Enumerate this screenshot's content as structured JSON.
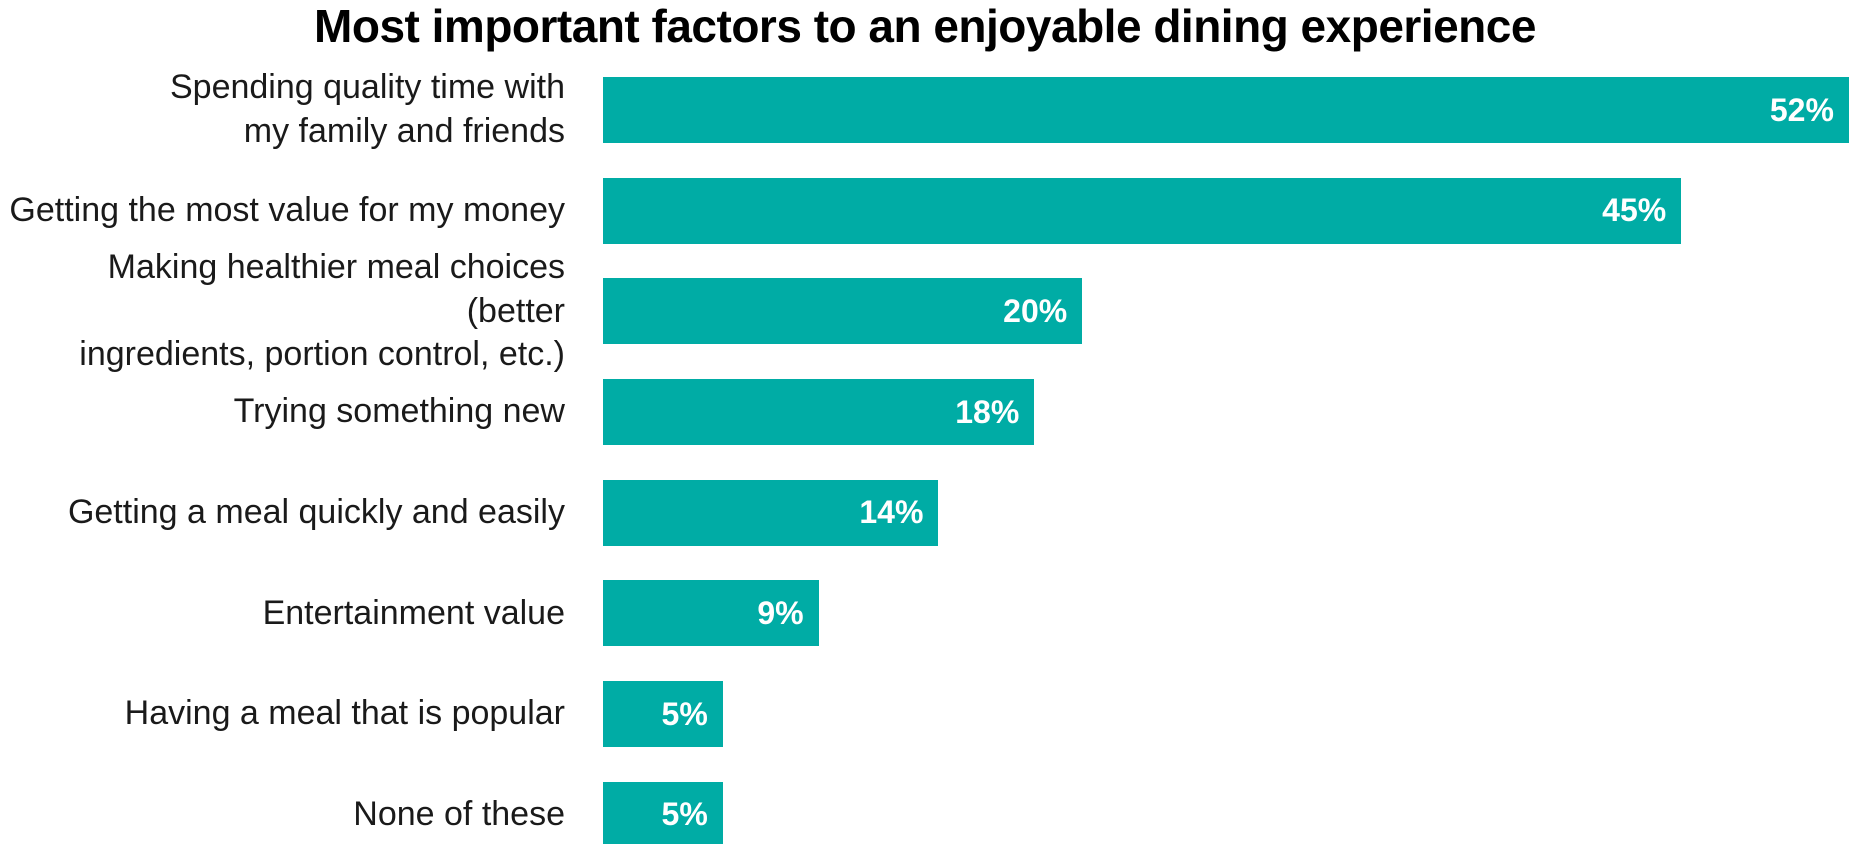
{
  "chart_data": {
    "type": "bar",
    "orientation": "horizontal",
    "title": "Most important factors to an enjoyable dining experience",
    "categories": [
      "Spending quality time with\nmy family and friends",
      "Getting the most value for my money",
      "Making healthier meal choices (better\ningredients, portion control, etc.)",
      "Trying something new",
      "Getting a meal quickly and easily",
      "Entertainment value",
      "Having a meal that is popular",
      "None of these"
    ],
    "values": [
      52,
      45,
      20,
      18,
      14,
      9,
      5,
      5
    ],
    "display_values": [
      "52%",
      "45%",
      "20%",
      "18%",
      "14%",
      "9%",
      "5%",
      "5%"
    ],
    "unit": "percent",
    "xlim": [
      0,
      52
    ],
    "grid": false,
    "legend": false,
    "value_label_position": "inside-right"
  },
  "colors": {
    "bar": "#00aca5",
    "value_label": "#ffffff",
    "category_label": "#1a1a1a",
    "title": "#000000",
    "background": "#ffffff"
  }
}
